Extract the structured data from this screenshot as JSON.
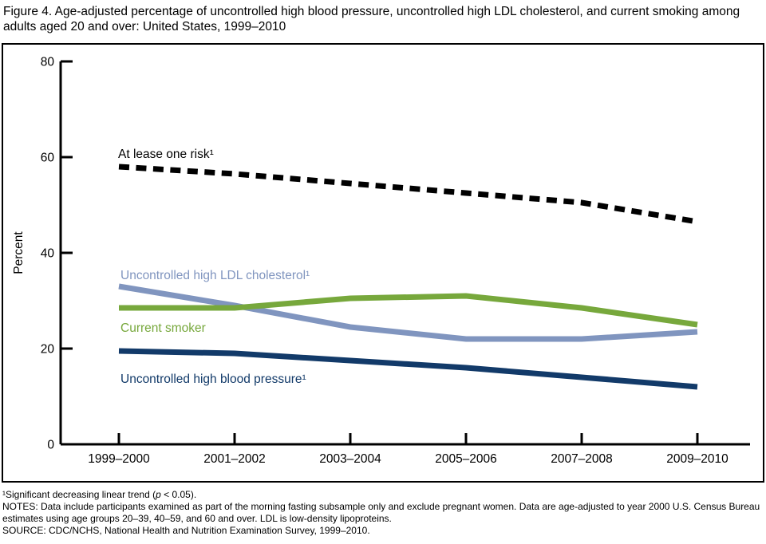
{
  "title": "Figure 4. Age-adjusted percentage of uncontrolled high blood pressure, uncontrolled high LDL cholesterol, and current smoking among adults aged 20 and over: United States, 1999–2010",
  "chart_data": {
    "type": "line",
    "title": "",
    "ylabel": "Percent",
    "xlabel": "",
    "ylim": [
      0,
      80
    ],
    "yticks": [
      0,
      20,
      40,
      60,
      80
    ],
    "grid": false,
    "legend": "inline-labels",
    "categories": [
      "1999–2000",
      "2001–2002",
      "2003–2004",
      "2005–2006",
      "2007–2008",
      "2009–2010"
    ],
    "series": [
      {
        "name": "At lease one risk¹",
        "color": "#000000",
        "line_style": "dashed",
        "values": [
          58,
          56.5,
          54.5,
          52.5,
          50.5,
          46.5
        ]
      },
      {
        "name": "Uncontrolled high LDL cholesterol¹",
        "color": "#8095bf",
        "line_style": "solid",
        "values": [
          33,
          29,
          24.5,
          22,
          22,
          23.5
        ]
      },
      {
        "name": "Current smoker",
        "color": "#77a83c",
        "line_style": "solid",
        "values": [
          28.5,
          28.5,
          30.5,
          31,
          28.5,
          25
        ]
      },
      {
        "name": "Uncontrolled high blood pressure¹",
        "color": "#123a69",
        "line_style": "solid",
        "values": [
          19.5,
          19,
          17.5,
          16,
          14,
          12
        ]
      }
    ]
  },
  "footnotes": {
    "significance_pre": "¹Significant decreasing linear trend (",
    "significance_var": "p",
    "significance_post": " < 0.05).",
    "notes": "NOTES: Data include participants examined as part of the morning fasting subsample only and exclude pregnant women. Data are age-adjusted to year 2000 U.S. Census Bureau estimates using age groups 20–39, 40–59, and 60 and over. LDL is low-density lipoproteins.",
    "source": "SOURCE: CDC/NCHS, National Health and Nutrition Examination Survey, 1999–2010."
  }
}
